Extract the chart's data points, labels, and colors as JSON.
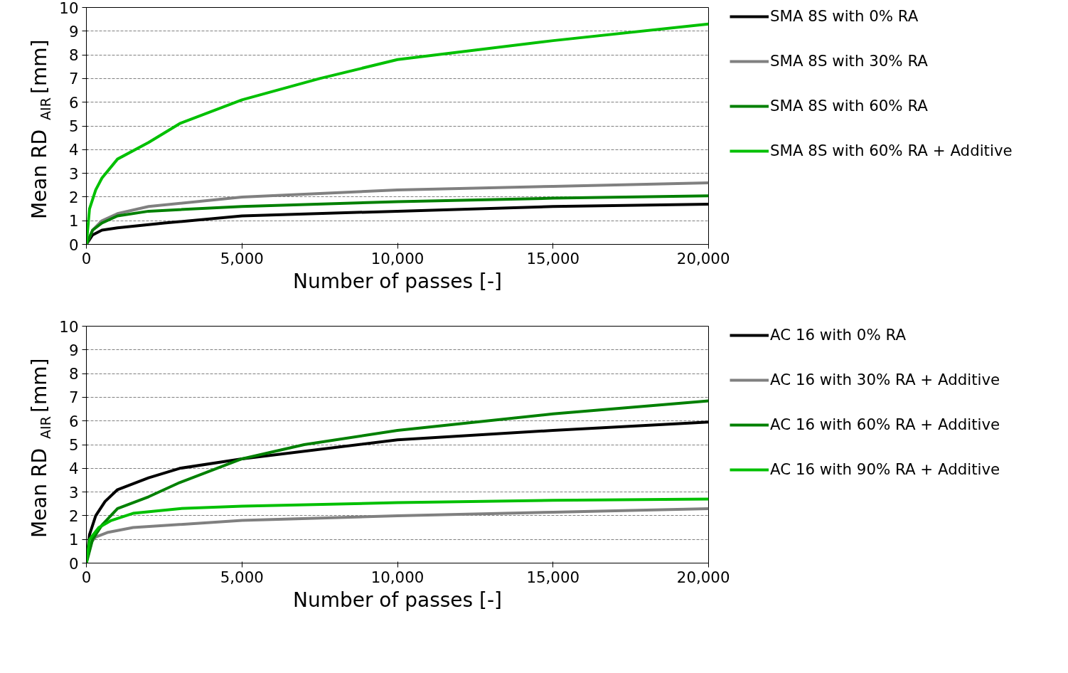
{
  "chart_data": [
    {
      "type": "line",
      "xlabel": "Number of passes [-]",
      "ylabel": "Mean RD$_{AIR}$ [mm]",
      "xlim": [
        0,
        20000
      ],
      "ylim": [
        0,
        10
      ],
      "xticks": [
        0,
        {
          "value": 5000,
          "label": "5,000"
        },
        {
          "value": 10000,
          "label": "10,000"
        },
        {
          "value": 15000,
          "label": "15,000"
        },
        {
          "value": 20000,
          "label": "20,000"
        }
      ],
      "yticks": [
        0,
        1,
        2,
        3,
        4,
        5,
        6,
        7,
        8,
        9,
        10
      ],
      "grid": "y",
      "legend": "right",
      "line_style": "solid",
      "marker": "none",
      "series": [
        {
          "name": "SMA 8S with 0% RA",
          "color": "#000000",
          "x": [
            0,
            200,
            500,
            1000,
            2500,
            5000,
            10000,
            15000,
            20000
          ],
          "values": [
            0,
            0.4,
            0.6,
            0.7,
            0.9,
            1.2,
            1.4,
            1.6,
            1.7
          ]
        },
        {
          "name": "SMA 8S with 30% RA",
          "color": "#808080",
          "x": [
            0,
            200,
            500,
            1000,
            2000,
            5000,
            10000,
            15000,
            20000
          ],
          "values": [
            0,
            0.6,
            1.0,
            1.3,
            1.6,
            2.0,
            2.3,
            2.45,
            2.6
          ]
        },
        {
          "name": "SMA 8S with 60% RA",
          "color": "#008000",
          "x": [
            0,
            200,
            500,
            1000,
            2000,
            5000,
            10000,
            15000,
            20000
          ],
          "values": [
            0,
            0.6,
            0.9,
            1.2,
            1.4,
            1.6,
            1.8,
            1.95,
            2.05
          ]
        },
        {
          "name": "SMA 8S with 60% RA + Additive",
          "color": "#00c000",
          "x": [
            0,
            100,
            300,
            500,
            1000,
            2000,
            3000,
            5000,
            7500,
            10000,
            15000,
            20000
          ],
          "values": [
            0,
            1.5,
            2.3,
            2.8,
            3.6,
            4.3,
            5.1,
            6.1,
            7.0,
            7.8,
            8.6,
            9.3
          ]
        }
      ]
    },
    {
      "type": "line",
      "xlabel": "Number of passes [-]",
      "ylabel": "Mean RD$_{AIR}$ [mm]",
      "xlim": [
        0,
        20000
      ],
      "ylim": [
        0,
        10
      ],
      "xticks": [
        0,
        {
          "value": 5000,
          "label": "5,000"
        },
        {
          "value": 10000,
          "label": "10,000"
        },
        {
          "value": 15000,
          "label": "15,000"
        },
        {
          "value": 20000,
          "label": "20,000"
        }
      ],
      "yticks": [
        0,
        1,
        2,
        3,
        4,
        5,
        6,
        7,
        8,
        9,
        10
      ],
      "grid": "y",
      "legend": "right",
      "line_style": "solid",
      "marker": "none",
      "series": [
        {
          "name": "AC 16 with 0% RA",
          "color": "#000000",
          "x": [
            0,
            100,
            300,
            600,
            1000,
            2000,
            3000,
            5000,
            10000,
            15000,
            20000
          ],
          "values": [
            0,
            1.2,
            2.0,
            2.6,
            3.1,
            3.6,
            4.0,
            4.4,
            5.2,
            5.6,
            5.95
          ]
        },
        {
          "name": "AC 16 with 30% RA + Additive",
          "color": "#808080",
          "x": [
            0,
            100,
            300,
            700,
            1500,
            5000,
            10000,
            15000,
            20000
          ],
          "values": [
            0,
            0.8,
            1.1,
            1.3,
            1.5,
            1.8,
            2.0,
            2.15,
            2.3
          ]
        },
        {
          "name": "AC 16 with 60% RA + Additive",
          "color": "#008000",
          "x": [
            0,
            200,
            500,
            1000,
            2000,
            3000,
            5000,
            7000,
            10000,
            15000,
            20000
          ],
          "values": [
            0,
            1.0,
            1.6,
            2.3,
            2.8,
            3.4,
            4.4,
            5.0,
            5.6,
            6.3,
            6.85
          ]
        },
        {
          "name": "AC 16 with 90% RA + Additive",
          "color": "#00c000",
          "x": [
            0,
            100,
            400,
            800,
            1500,
            3000,
            5000,
            10000,
            15000,
            20000
          ],
          "values": [
            0,
            1.0,
            1.5,
            1.8,
            2.1,
            2.3,
            2.4,
            2.55,
            2.65,
            2.7
          ]
        }
      ]
    }
  ]
}
